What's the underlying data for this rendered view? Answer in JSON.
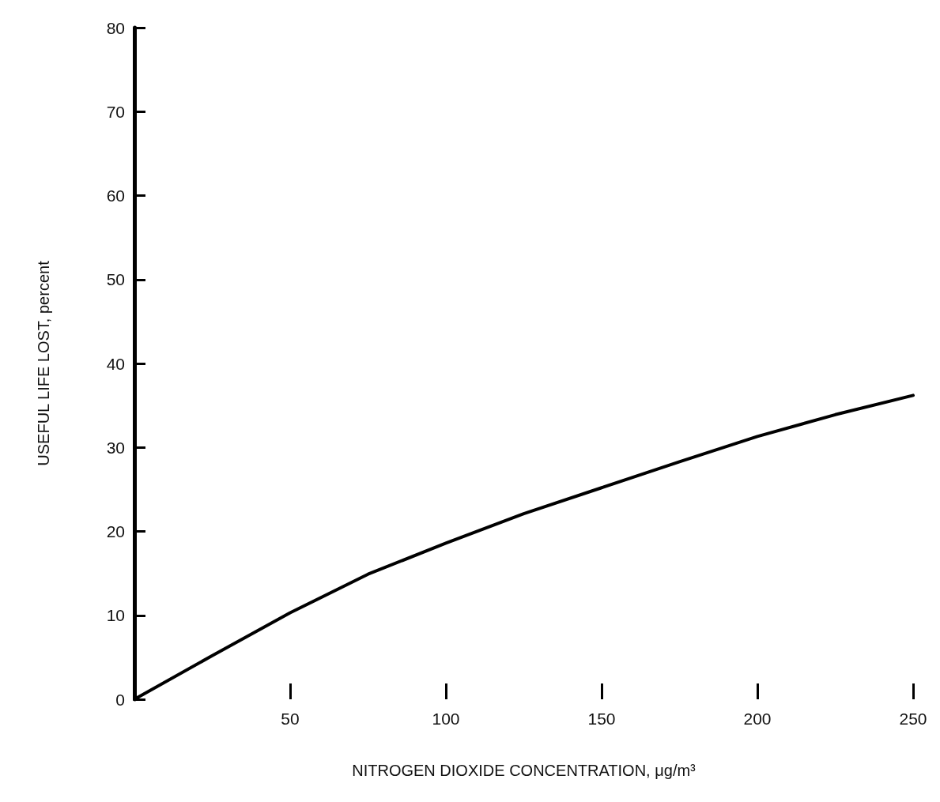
{
  "chart_data": {
    "type": "line",
    "xlabel": "NITROGEN DIOXIDE CONCENTRATION, μg/m³",
    "ylabel": "USEFUL LIFE LOST, percent",
    "x": [
      0,
      25,
      50,
      75,
      100,
      125,
      150,
      175,
      200,
      225,
      250
    ],
    "series": [
      {
        "color": "#000000",
        "values": [
          0,
          5.2,
          10.3,
          14.9,
          18.6,
          22.1,
          25.2,
          28.3,
          31.3,
          33.9,
          36.2
        ]
      }
    ],
    "xlim": [
      0,
      250
    ],
    "xticks": [
      50,
      100,
      150,
      200,
      250
    ],
    "ylim": [
      0,
      80
    ],
    "yticks": [
      0,
      10,
      20,
      30,
      40,
      50,
      60,
      70,
      80
    ],
    "grid": false,
    "marker": "none",
    "line_style": "solid"
  }
}
